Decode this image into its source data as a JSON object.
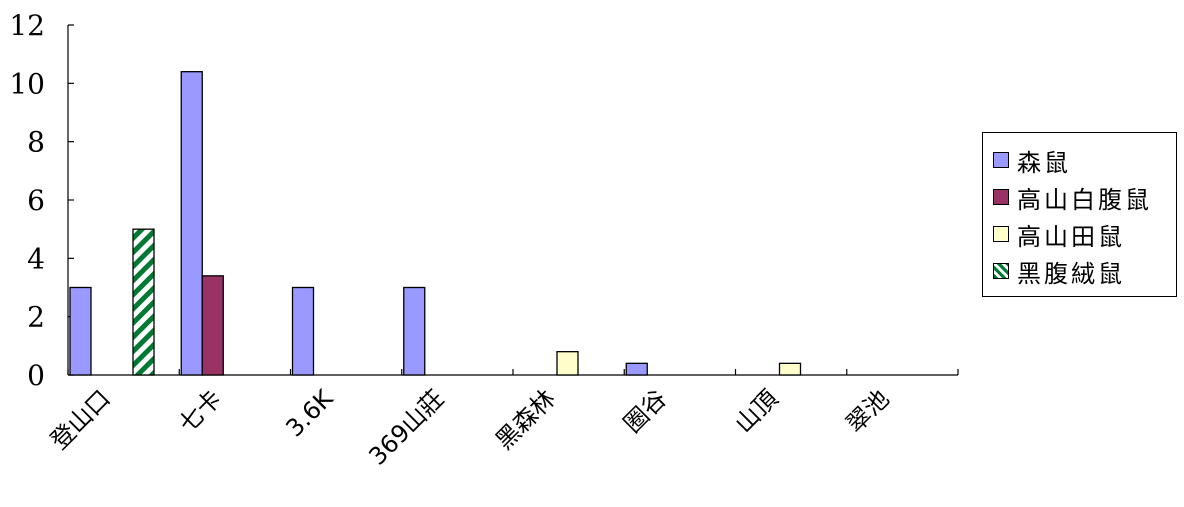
{
  "chart_data": {
    "type": "bar",
    "categories": [
      "登山口",
      "七卡",
      "3.6K",
      "369山莊",
      "黑森林",
      "圈谷",
      "山頂",
      "翠池"
    ],
    "series": [
      {
        "name": "森鼠",
        "values": [
          3,
          10.4,
          3,
          3,
          0,
          0.4,
          0,
          0
        ],
        "color": "#9999ff"
      },
      {
        "name": "高山白腹鼠",
        "values": [
          0,
          3.4,
          0,
          0,
          0,
          0,
          0,
          0
        ],
        "color": "#993366"
      },
      {
        "name": "高山田鼠",
        "values": [
          0,
          0,
          0,
          0,
          0.8,
          0,
          0.4,
          0
        ],
        "color": "#ffffcc"
      },
      {
        "name": "黑腹絨鼠",
        "values": [
          5,
          0,
          0,
          0,
          0,
          0,
          0,
          0
        ],
        "color": "#007a33",
        "pattern": "diagonal-hatch"
      }
    ],
    "ylim": [
      0,
      12
    ],
    "yticks": [
      0,
      2,
      4,
      6,
      8,
      10,
      12
    ],
    "legend_position": "right",
    "grid": false
  }
}
